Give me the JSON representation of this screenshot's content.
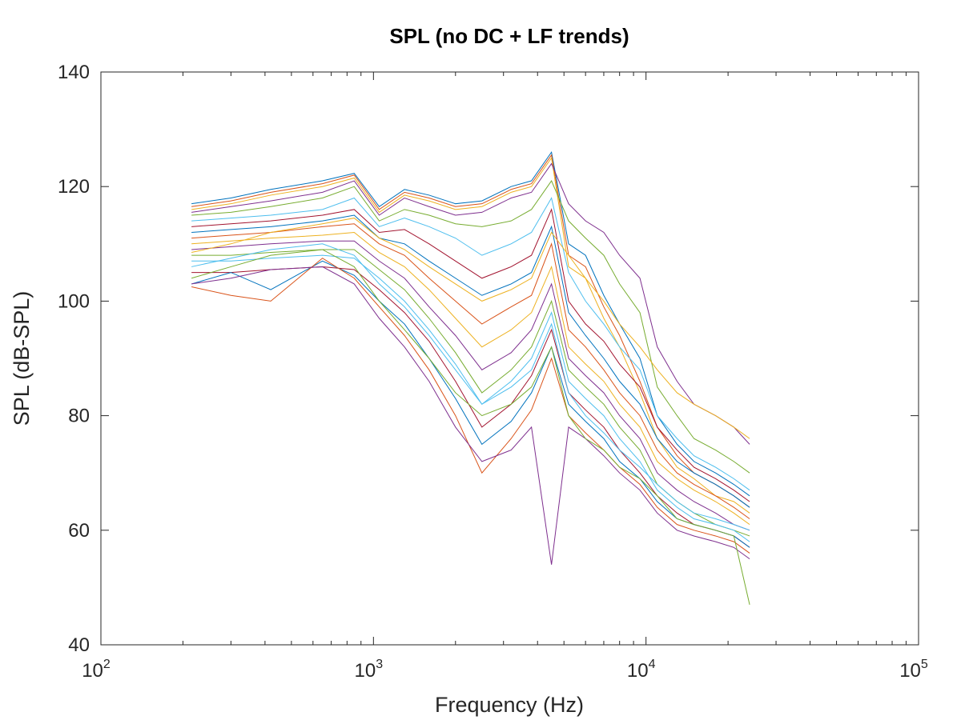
{
  "chart_data": {
    "type": "line",
    "title": "SPL (no DC + LF trends)",
    "xlabel": "Frequency (Hz)",
    "ylabel": "SPL (dB-SPL)",
    "xscale": "log",
    "xlim": [
      100,
      100000
    ],
    "ylim": [
      40,
      140
    ],
    "grid": false,
    "legend": "none",
    "x_ticks": [
      {
        "base": "10",
        "exp": "2"
      },
      {
        "base": "10",
        "exp": "3"
      },
      {
        "base": "10",
        "exp": "4"
      },
      {
        "base": "10",
        "exp": "5"
      }
    ],
    "x_tick_values": [
      100,
      1000,
      10000,
      100000
    ],
    "y_ticks": [
      "40",
      "60",
      "80",
      "100",
      "120",
      "140"
    ],
    "y_tick_values": [
      40,
      60,
      80,
      100,
      120,
      140
    ],
    "x": [
      215,
      300,
      420,
      650,
      850,
      1050,
      1300,
      1600,
      2000,
      2500,
      3200,
      3800,
      4500,
      5200,
      6000,
      7000,
      8000,
      9500,
      11000,
      13000,
      15000,
      18000,
      21000,
      24000
    ],
    "series": [
      {
        "color": "#0072bd",
        "values": [
          117.0,
          118.0,
          119.5,
          121.0,
          122.3,
          116.5,
          119.5,
          118.5,
          117.0,
          117.5,
          120.0,
          121.0,
          126.0,
          110.0,
          108.0,
          101.0,
          96.0,
          90.0,
          80.0,
          75.0,
          72.0,
          70.0,
          68.0,
          66.0
        ]
      },
      {
        "color": "#d95319",
        "values": [
          116.5,
          117.5,
          119.0,
          120.5,
          122.0,
          116.0,
          119.0,
          118.0,
          116.5,
          117.0,
          119.5,
          120.5,
          125.5,
          108.0,
          106.0,
          99.0,
          94.0,
          86.0,
          78.0,
          73.0,
          70.0,
          68.0,
          66.0,
          64.0
        ]
      },
      {
        "color": "#edb120",
        "values": [
          116.0,
          117.0,
          118.5,
          120.0,
          121.5,
          115.5,
          118.5,
          117.5,
          116.0,
          116.5,
          119.0,
          120.0,
          125.0,
          106.0,
          104.0,
          97.0,
          92.0,
          84.0,
          76.0,
          71.0,
          69.0,
          66.0,
          65.0,
          63.0
        ]
      },
      {
        "color": "#7e2f8e",
        "values": [
          115.5,
          116.5,
          117.5,
          119.0,
          121.0,
          115.0,
          118.0,
          116.5,
          115.0,
          115.5,
          118.0,
          119.0,
          124.0,
          117.0,
          114.0,
          112.0,
          108.0,
          104.0,
          92.0,
          86.0,
          82.0,
          80.0,
          78.0,
          75.0
        ]
      },
      {
        "color": "#77ac30",
        "values": [
          115.0,
          115.5,
          116.5,
          118.0,
          120.0,
          114.0,
          116.0,
          115.0,
          113.5,
          113.0,
          114.0,
          116.0,
          121.0,
          114.0,
          111.0,
          108.0,
          103.0,
          98.0,
          85.0,
          80.0,
          76.0,
          74.0,
          72.0,
          70.0
        ]
      },
      {
        "color": "#4dbeee",
        "values": [
          114.0,
          114.5,
          115.0,
          116.0,
          118.0,
          113.0,
          114.5,
          113.0,
          111.0,
          108.0,
          110.0,
          112.0,
          118.0,
          105.0,
          100.0,
          96.0,
          92.0,
          88.0,
          80.0,
          76.0,
          73.0,
          71.0,
          69.0,
          67.0
        ]
      },
      {
        "color": "#a2142f",
        "values": [
          113.0,
          113.5,
          114.0,
          115.0,
          116.0,
          112.0,
          112.5,
          110.0,
          107.0,
          104.0,
          106.0,
          108.0,
          116.0,
          100.0,
          96.0,
          93.0,
          89.0,
          85.0,
          78.0,
          74.0,
          71.0,
          69.0,
          67.0,
          65.0
        ]
      },
      {
        "color": "#0072bd",
        "values": [
          112.0,
          112.5,
          113.0,
          114.0,
          115.0,
          111.0,
          110.0,
          107.0,
          104.0,
          101.0,
          103.0,
          105.0,
          113.0,
          98.0,
          94.0,
          90.0,
          86.0,
          82.0,
          76.0,
          72.0,
          70.0,
          68.0,
          66.0,
          64.0
        ]
      },
      {
        "color": "#d95319",
        "values": [
          111.0,
          111.5,
          112.0,
          113.0,
          113.5,
          110.0,
          108.0,
          104.0,
          100.0,
          96.0,
          99.0,
          101.0,
          110.0,
          95.0,
          92.0,
          88.0,
          84.0,
          80.0,
          74.0,
          70.0,
          68.0,
          66.0,
          64.0,
          62.0
        ]
      },
      {
        "color": "#edb120",
        "values": [
          110.0,
          110.5,
          111.0,
          111.5,
          112.0,
          108.5,
          106.0,
          102.0,
          97.0,
          92.0,
          95.0,
          98.0,
          106.0,
          92.0,
          89.0,
          86.0,
          82.0,
          78.0,
          72.0,
          69.0,
          67.0,
          65.0,
          63.0,
          61.0
        ]
      },
      {
        "color": "#7e2f8e",
        "values": [
          109.0,
          109.5,
          110.0,
          110.5,
          110.5,
          107.0,
          104.0,
          99.0,
          94.0,
          88.0,
          91.0,
          95.0,
          103.0,
          90.0,
          87.0,
          84.0,
          80.0,
          76.0,
          70.0,
          67.0,
          65.0,
          63.0,
          61.0,
          60.0
        ]
      },
      {
        "color": "#77ac30",
        "values": [
          108.0,
          108.0,
          108.5,
          109.0,
          109.0,
          105.5,
          102.0,
          97.0,
          91.0,
          84.0,
          88.0,
          92.0,
          100.0,
          88.0,
          85.0,
          82.0,
          78.0,
          74.0,
          68.0,
          65.0,
          63.0,
          61.0,
          60.0,
          59.0
        ]
      },
      {
        "color": "#4dbeee",
        "values": [
          107.0,
          107.0,
          107.5,
          108.0,
          107.5,
          104.0,
          100.0,
          95.0,
          89.0,
          82.0,
          86.0,
          90.0,
          98.0,
          86.0,
          83.0,
          80.0,
          76.0,
          72.0,
          67.0,
          64.0,
          62.0,
          61.0,
          60.0,
          58.0
        ]
      },
      {
        "color": "#a2142f",
        "values": [
          105.0,
          105.0,
          105.5,
          106.0,
          105.5,
          102.0,
          98.0,
          93.0,
          86.0,
          78.0,
          82.0,
          87.0,
          95.0,
          84.0,
          81.0,
          78.0,
          74.0,
          70.0,
          66.0,
          63.0,
          61.0,
          60.0,
          59.0,
          57.0
        ]
      },
      {
        "color": "#0072bd",
        "values": [
          103.0,
          105.0,
          102.0,
          107.0,
          104.5,
          100.0,
          96.0,
          90.0,
          83.0,
          75.0,
          79.0,
          84.0,
          92.0,
          82.0,
          79.0,
          76.0,
          72.0,
          69.0,
          65.0,
          62.0,
          61.0,
          60.0,
          59.0,
          57.0
        ]
      },
      {
        "color": "#d95319",
        "values": [
          102.5,
          101.0,
          100.0,
          107.5,
          104.0,
          99.0,
          94.0,
          88.0,
          80.0,
          70.0,
          76.0,
          81.0,
          90.0,
          80.0,
          77.0,
          74.0,
          71.0,
          68.0,
          64.0,
          61.0,
          60.0,
          59.0,
          58.0,
          56.0
        ]
      },
      {
        "color": "#7e2f8e",
        "values": [
          103.0,
          104.0,
          105.5,
          106.0,
          103.0,
          97.0,
          92.0,
          86.0,
          78.0,
          72.0,
          74.0,
          78.0,
          54.0,
          78.0,
          76.0,
          73.0,
          70.0,
          67.0,
          63.0,
          60.0,
          59.0,
          58.0,
          57.0,
          55.0
        ]
      },
      {
        "color": "#77ac30",
        "values": [
          104.0,
          106.0,
          108.0,
          109.0,
          106.0,
          100.0,
          95.0,
          90.0,
          84.0,
          80.0,
          82.0,
          85.0,
          92.0,
          80.0,
          76.0,
          74.0,
          71.0,
          69.0,
          66.0,
          62.0,
          61.0,
          60.0,
          59.0,
          47.0
        ]
      },
      {
        "color": "#4dbeee",
        "values": [
          106.0,
          107.5,
          109.0,
          110.0,
          108.0,
          103.0,
          99.0,
          94.0,
          88.0,
          82.0,
          85.0,
          88.0,
          96.0,
          84.0,
          80.0,
          77.0,
          74.0,
          71.0,
          68.0,
          65.0,
          63.0,
          62.0,
          61.0,
          60.0
        ]
      },
      {
        "color": "#edb120",
        "values": [
          108.5,
          110.0,
          112.0,
          113.5,
          114.5,
          111.0,
          109.0,
          106.0,
          103.0,
          100.0,
          102.0,
          104.0,
          112.0,
          108.0,
          104.0,
          100.0,
          96.0,
          92.0,
          88.0,
          84.0,
          82.0,
          80.0,
          78.0,
          76.0
        ]
      }
    ]
  }
}
